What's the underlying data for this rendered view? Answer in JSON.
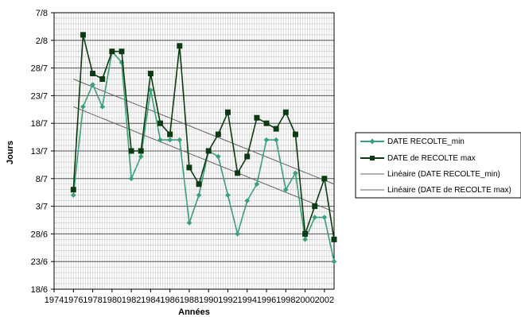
{
  "chart_data": {
    "type": "line",
    "xlabel": "Années",
    "ylabel": "Jours",
    "x_ticks": [
      "1974",
      "1976",
      "1978",
      "1980",
      "1982",
      "1984",
      "1986",
      "1988",
      "1990",
      "1992",
      "1994",
      "1996",
      "1998",
      "2000",
      "2002"
    ],
    "y_ticks": [
      "18/6",
      "23/6",
      "28/6",
      "3/7",
      "8/7",
      "13/7",
      "18/7",
      "23/7",
      "28/7",
      "2/8",
      "7/8"
    ],
    "xlim": [
      1974,
      2003
    ],
    "ylim": [
      "18/6",
      "7/8"
    ],
    "grid": true,
    "legend_position": "right",
    "x": [
      1976,
      1977,
      1978,
      1979,
      1980,
      1981,
      1982,
      1983,
      1984,
      1985,
      1986,
      1987,
      1988,
      1989,
      1990,
      1991,
      1992,
      1993,
      1994,
      1995,
      1996,
      1997,
      1998,
      1999,
      2000,
      2001,
      2002,
      2003
    ],
    "series": [
      {
        "name": "DATE RECOLTE_min",
        "color": "#3aa07a",
        "marker": "diamond",
        "values": [
          "5/7",
          "21/7",
          "25/7",
          "21/7",
          "31/7",
          "29/7",
          "8/7",
          "12/7",
          "24/7",
          "15/7",
          "15/7",
          "15/7",
          "30/6",
          "5/7",
          "13/7",
          "12/7",
          "5/7",
          "28/6",
          "4/7",
          "7/7",
          "15/7",
          "15/7",
          "6/7",
          "9/7",
          "27/6",
          "1/7",
          "1/7",
          "23/6"
        ]
      },
      {
        "name": "DATE de RECOLTE max",
        "color": "#0c3a12",
        "marker": "square",
        "values": [
          "6/7",
          "3/8",
          "27/7",
          "26/7",
          "31/7",
          "31/7",
          "13/7",
          "13/7",
          "27/7",
          "18/7",
          "16/7",
          "1/8",
          "10/7",
          "7/7",
          "13/7",
          "16/7",
          "20/7",
          "9/7",
          "12/7",
          "19/7",
          "18/7",
          "17/7",
          "20/7",
          "16/7",
          "28/6",
          "3/7",
          "8/7",
          "27/6"
        ]
      }
    ],
    "trendlines": [
      {
        "name": "Linéaire (DATE RECOLTE_min)",
        "color": "#666666",
        "start": "21/7",
        "end": "2/7"
      },
      {
        "name": "Linéaire (DATE de RECOLTE max)",
        "color": "#666666",
        "start": "26/7",
        "end": "7/7"
      }
    ]
  }
}
